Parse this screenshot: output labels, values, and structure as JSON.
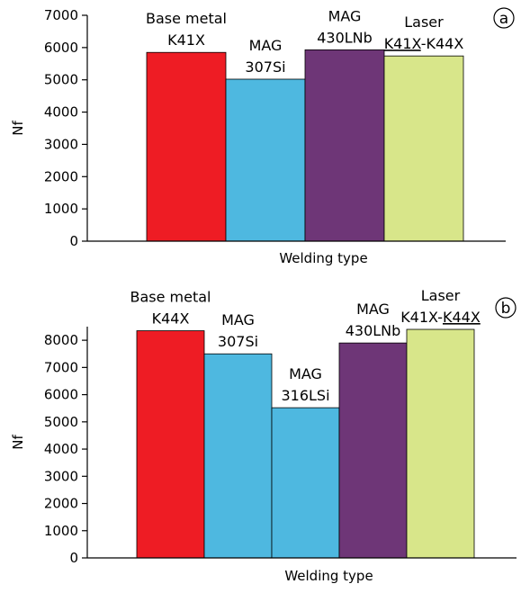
{
  "chart_data": [
    {
      "type": "bar",
      "panel_label": "a",
      "ylabel": "Nf",
      "xlabel": "Welding type",
      "ylim": [
        0,
        7000
      ],
      "yticks": [
        0,
        1000,
        2000,
        3000,
        4000,
        5000,
        6000,
        7000
      ],
      "categories": [
        {
          "lines": [
            {
              "text": "Base metal"
            },
            {
              "text": "K41X"
            }
          ]
        },
        {
          "lines": [
            {
              "text": "MAG"
            },
            {
              "text": "307Si"
            }
          ]
        },
        {
          "lines": [
            {
              "text": "MAG"
            },
            {
              "text": "430LNb"
            }
          ]
        },
        {
          "lines": [
            {
              "text": "Laser"
            },
            {
              "parts": [
                {
                  "text": "K41X",
                  "underline": true
                },
                {
                  "text": "-K44X",
                  "underline": false
                }
              ]
            }
          ]
        }
      ],
      "values": [
        5850,
        5020,
        5930,
        5740
      ],
      "colors": [
        "#ee1c24",
        "#4eb8e0",
        "#6e3677",
        "#d8e68a"
      ]
    },
    {
      "type": "bar",
      "panel_label": "b",
      "ylabel": "Nf",
      "xlabel": "Welding type",
      "ylim": [
        0,
        8500
      ],
      "yticks": [
        0,
        1000,
        2000,
        3000,
        4000,
        5000,
        6000,
        7000,
        8000
      ],
      "categories": [
        {
          "lines": [
            {
              "text": "Base metal"
            },
            {
              "text": "K44X"
            }
          ]
        },
        {
          "lines": [
            {
              "text": "MAG"
            },
            {
              "text": "307Si"
            }
          ]
        },
        {
          "lines": [
            {
              "text": "MAG"
            },
            {
              "text": "316LSi"
            }
          ]
        },
        {
          "lines": [
            {
              "text": "MAG"
            },
            {
              "text": "430LNb"
            }
          ]
        },
        {
          "lines": [
            {
              "text": "Laser"
            },
            {
              "parts": [
                {
                  "text": "K41X-",
                  "underline": false
                },
                {
                  "text": "K44X",
                  "underline": true
                }
              ]
            }
          ]
        }
      ],
      "values": [
        8350,
        7500,
        5520,
        7900,
        8400
      ],
      "colors": [
        "#ee1c24",
        "#4eb8e0",
        "#4eb8e0",
        "#6e3677",
        "#d8e68a"
      ]
    }
  ]
}
